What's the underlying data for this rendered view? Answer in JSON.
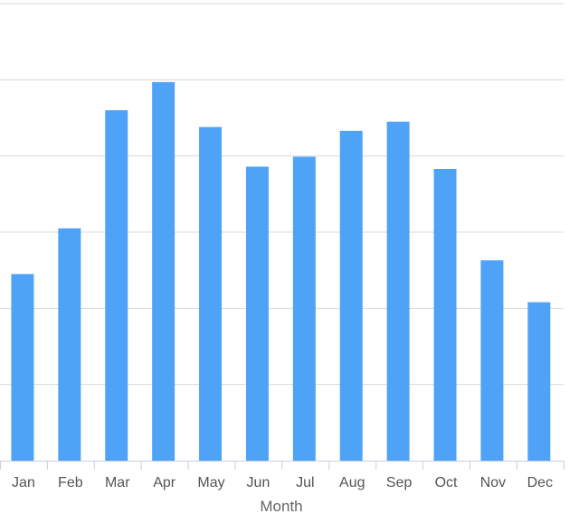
{
  "chart_data": {
    "type": "bar",
    "title": "",
    "xlabel": "Month",
    "ylabel": "",
    "categories": [
      "Jan",
      "Feb",
      "Mar",
      "Apr",
      "May",
      "Jun",
      "Jul",
      "Aug",
      "Sep",
      "Oct",
      "Nov",
      "Dec"
    ],
    "values": [
      2.45,
      3.05,
      4.6,
      4.97,
      4.38,
      3.86,
      3.99,
      4.33,
      4.45,
      3.83,
      2.63,
      2.08
    ],
    "ylim": [
      0,
      6
    ],
    "yticks": [
      0,
      1,
      2,
      3,
      4,
      5,
      6
    ],
    "grid": true,
    "legend": "none",
    "colors": {
      "bar": "#4fa3f7",
      "grid": "#d9d9d9",
      "axis": "#c9cfe0"
    }
  }
}
